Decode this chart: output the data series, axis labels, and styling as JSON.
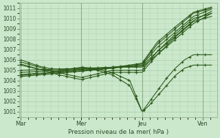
{
  "xlabel": "Pression niveau de la mer( hPa )",
  "bg_color": "#cce8cc",
  "plot_bg_color": "#cce8cc",
  "grid_color": "#aaccaa",
  "line_color": "#2d5a1b",
  "ylim": [
    1000.5,
    1011.5
  ],
  "yticks": [
    1001,
    1002,
    1003,
    1004,
    1005,
    1006,
    1007,
    1008,
    1009,
    1010,
    1011
  ],
  "day_labels": [
    "Mar",
    "Mer",
    "Jeu",
    "Ven"
  ],
  "day_positions": [
    0.0,
    0.333,
    0.667,
    1.0
  ],
  "lines": [
    {
      "x": [
        0.0,
        0.05,
        0.1,
        0.15,
        0.2,
        0.25,
        0.3,
        0.333,
        0.4,
        0.5,
        0.6,
        0.667,
        0.7,
        0.75,
        0.8,
        0.85,
        0.9,
        0.95,
        1.0,
        1.05
      ],
      "y": [
        1006.0,
        1005.7,
        1005.4,
        1005.2,
        1005.1,
        1005.1,
        1005.2,
        1005.3,
        1005.2,
        1004.8,
        1004.0,
        1001.0,
        1001.5,
        1002.5,
        1003.5,
        1004.5,
        1005.2,
        1005.5,
        1005.5,
        1005.5
      ]
    },
    {
      "x": [
        0.0,
        0.05,
        0.1,
        0.15,
        0.2,
        0.25,
        0.3,
        0.333,
        0.4,
        0.5,
        0.6,
        0.667,
        0.7,
        0.75,
        0.8,
        0.85,
        0.9,
        0.95,
        1.0,
        1.05
      ],
      "y": [
        1005.5,
        1005.3,
        1005.1,
        1005.0,
        1004.9,
        1005.0,
        1005.1,
        1005.2,
        1005.1,
        1004.6,
        1003.5,
        1001.0,
        1001.8,
        1003.0,
        1004.2,
        1005.2,
        1006.0,
        1006.5,
        1006.5,
        1006.5
      ]
    },
    {
      "x": [
        0.0,
        0.333,
        0.5,
        0.667,
        0.75,
        0.85,
        0.95,
        1.05
      ],
      "y": [
        1005.0,
        1005.2,
        1005.3,
        1005.3,
        1006.5,
        1008.0,
        1009.5,
        1010.5
      ]
    },
    {
      "x": [
        0.0,
        0.333,
        0.5,
        0.667,
        0.75,
        0.85,
        0.95,
        1.05
      ],
      "y": [
        1004.8,
        1005.1,
        1005.3,
        1005.4,
        1006.8,
        1008.3,
        1009.8,
        1010.7
      ]
    },
    {
      "x": [
        0.0,
        0.333,
        0.5,
        0.667,
        0.75,
        0.85,
        0.95,
        1.05
      ],
      "y": [
        1004.6,
        1005.0,
        1005.2,
        1005.5,
        1007.2,
        1008.7,
        1010.2,
        1010.9
      ]
    },
    {
      "x": [
        0.0,
        0.333,
        0.5,
        0.667,
        0.75,
        0.85,
        0.95,
        1.05
      ],
      "y": [
        1004.5,
        1005.0,
        1005.3,
        1005.6,
        1007.5,
        1009.0,
        1010.5,
        1011.0
      ]
    },
    {
      "x": [
        0.0,
        0.333,
        0.5,
        0.667,
        0.75,
        0.85,
        0.95,
        1.05
      ],
      "y": [
        1004.4,
        1004.9,
        1005.2,
        1005.7,
        1007.7,
        1009.2,
        1010.6,
        1011.1
      ]
    },
    {
      "x": [
        0.0,
        0.1,
        0.2,
        0.333,
        0.5,
        0.667,
        0.75,
        0.85,
        0.95,
        1.05
      ],
      "y": [
        1005.8,
        1005.3,
        1004.8,
        1004.3,
        1005.0,
        1005.0,
        1006.8,
        1008.5,
        1010.0,
        1010.5
      ]
    },
    {
      "x": [
        0.0,
        0.1,
        0.2,
        0.333,
        0.5,
        0.667,
        0.75,
        0.85,
        0.95,
        1.05
      ],
      "y": [
        1005.6,
        1005.1,
        1004.6,
        1004.1,
        1004.8,
        1004.8,
        1006.5,
        1008.2,
        1009.7,
        1010.2
      ]
    }
  ]
}
